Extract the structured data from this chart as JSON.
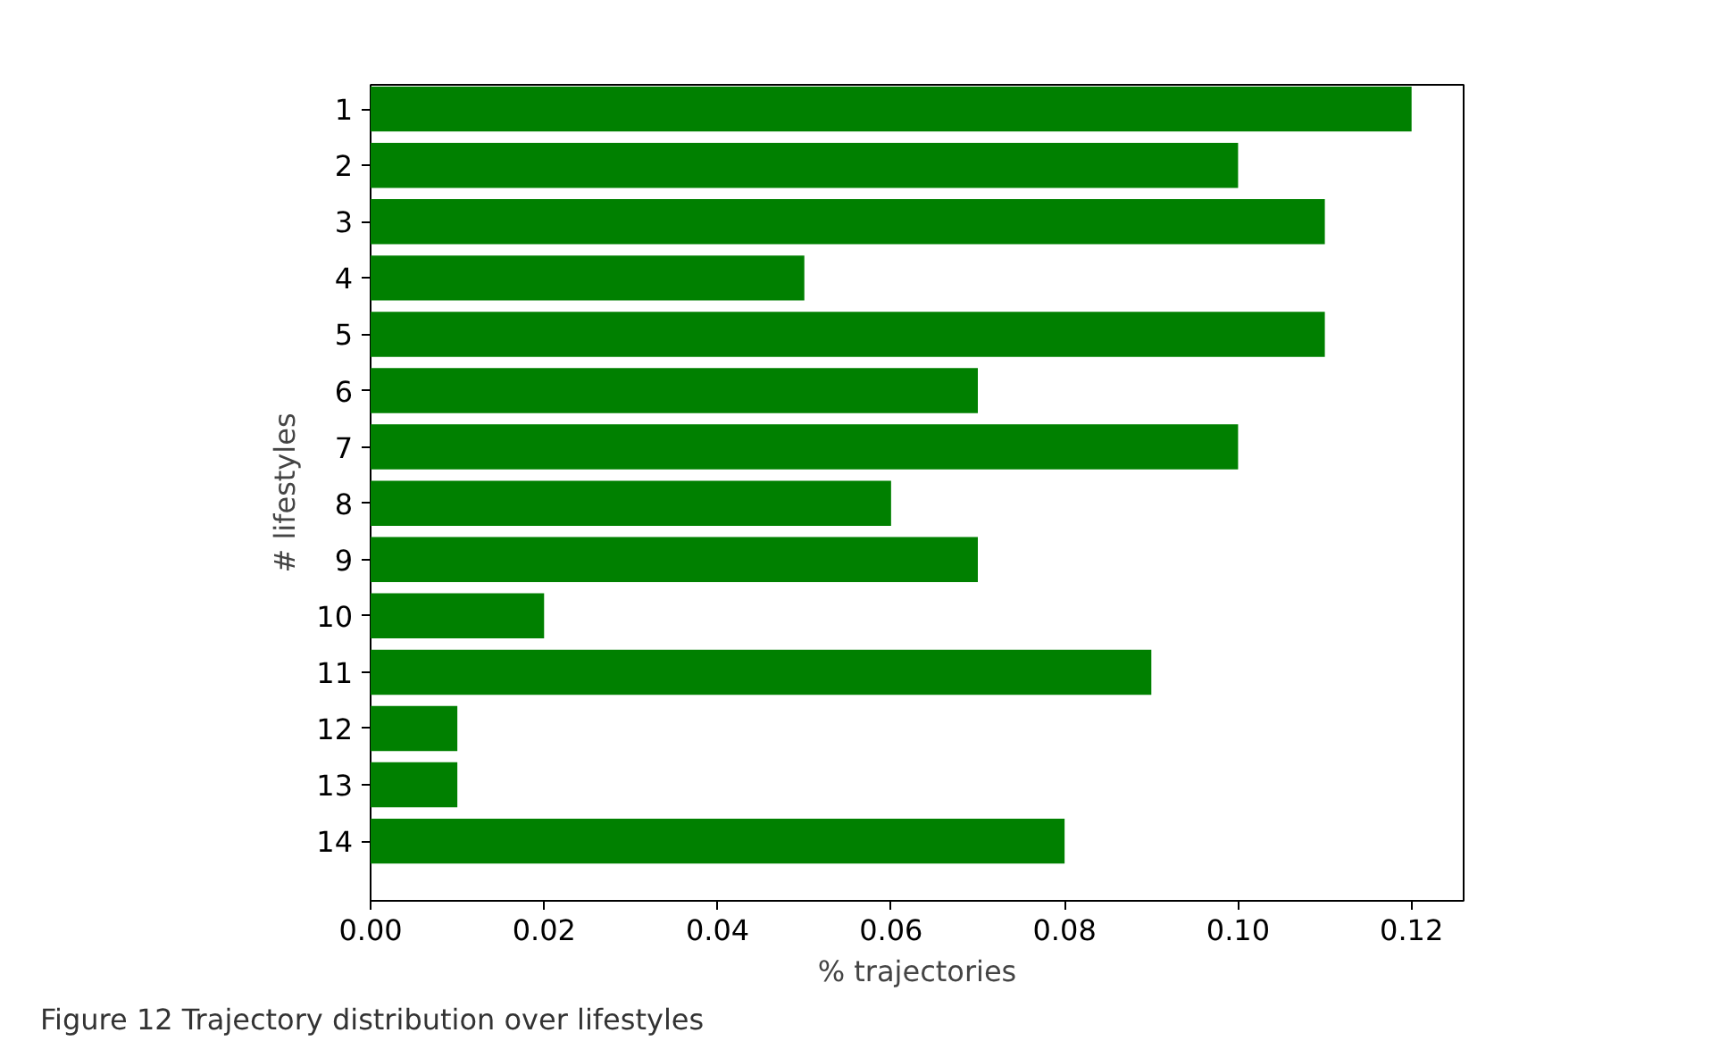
{
  "chart_data": {
    "type": "bar",
    "orientation": "horizontal",
    "xlabel": "% trajectories",
    "ylabel": "# lifestyles",
    "categories": [
      "1",
      "2",
      "3",
      "4",
      "5",
      "6",
      "7",
      "8",
      "9",
      "10",
      "11",
      "12",
      "13",
      "14"
    ],
    "values": [
      0.12,
      0.1,
      0.11,
      0.05,
      0.11,
      0.07,
      0.1,
      0.06,
      0.07,
      0.02,
      0.09,
      0.01,
      0.01,
      0.08
    ],
    "color": "#008000",
    "xlim": [
      0,
      0.126
    ],
    "xticks": [
      {
        "value": 0,
        "label": "0.00"
      },
      {
        "value": 0.02,
        "label": "0.02"
      },
      {
        "value": 0.04,
        "label": "0.04"
      },
      {
        "value": 0.06,
        "label": "0.06"
      },
      {
        "value": 0.08,
        "label": "0.08"
      },
      {
        "value": 0.1,
        "label": "0.10"
      },
      {
        "value": 0.12,
        "label": "0.12"
      }
    ],
    "grid": false,
    "annotations": [
      "Figure 12  Trajectory distribution over lifestyles"
    ]
  }
}
